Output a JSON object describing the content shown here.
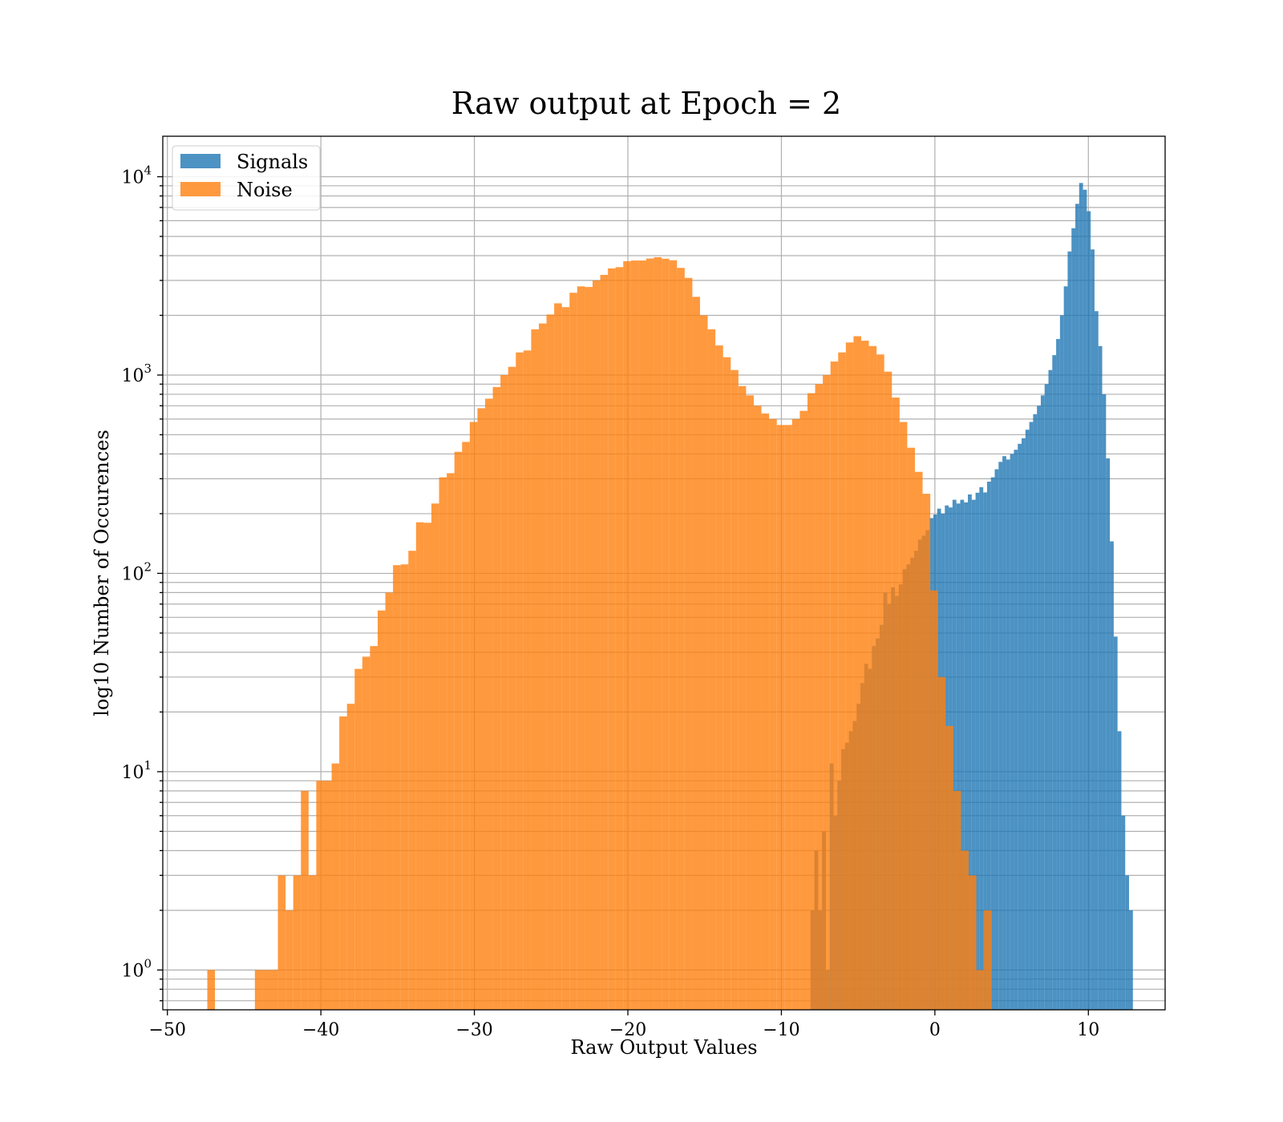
{
  "chart_data": {
    "type": "histogram",
    "title": "Raw output at Epoch = 2",
    "xlabel": "Raw Output Values",
    "ylabel": "log10 Number of Occurences",
    "xlim": [
      -50.3,
      15
    ],
    "ylim": [
      0.63,
      16000
    ],
    "yscale": "log",
    "grid": true,
    "legend_position": "top-left",
    "x_ticks": [
      {
        "value": -50,
        "label": "−50"
      },
      {
        "value": -40,
        "label": "−40"
      },
      {
        "value": -30,
        "label": "−30"
      },
      {
        "value": -20,
        "label": "−20"
      },
      {
        "value": -10,
        "label": "−10"
      },
      {
        "value": 0,
        "label": "0"
      },
      {
        "value": 10,
        "label": "10"
      }
    ],
    "y_ticks": [
      {
        "value": 1,
        "base": "10",
        "exp": "0"
      },
      {
        "value": 10,
        "base": "10",
        "exp": "1"
      },
      {
        "value": 100,
        "base": "10",
        "exp": "2"
      },
      {
        "value": 1000,
        "base": "10",
        "exp": "3"
      },
      {
        "value": 10000,
        "base": "10",
        "exp": "4"
      }
    ],
    "series": [
      {
        "name": "Signals",
        "color": "#1f77b4",
        "opacity": 0.8,
        "bins": [
          [
            -8.1,
            -7.85,
            2
          ],
          [
            -7.85,
            -7.6,
            4
          ],
          [
            -7.6,
            -7.35,
            2
          ],
          [
            -7.35,
            -7.1,
            5
          ],
          [
            -7.1,
            -6.85,
            1
          ],
          [
            -6.85,
            -6.6,
            11
          ],
          [
            -6.6,
            -6.35,
            6
          ],
          [
            -6.35,
            -6.1,
            9
          ],
          [
            -6.1,
            -5.85,
            13
          ],
          [
            -5.85,
            -5.6,
            14
          ],
          [
            -5.6,
            -5.35,
            16
          ],
          [
            -5.35,
            -5.1,
            18
          ],
          [
            -5.1,
            -4.85,
            22
          ],
          [
            -4.85,
            -4.6,
            28
          ],
          [
            -4.6,
            -4.35,
            35
          ],
          [
            -4.35,
            -4.1,
            33
          ],
          [
            -4.1,
            -3.85,
            43
          ],
          [
            -3.85,
            -3.6,
            47
          ],
          [
            -3.6,
            -3.35,
            55
          ],
          [
            -3.35,
            -3.1,
            80
          ],
          [
            -3.1,
            -2.85,
            70
          ],
          [
            -2.85,
            -2.6,
            85
          ],
          [
            -2.6,
            -2.35,
            77
          ],
          [
            -2.35,
            -2.1,
            88
          ],
          [
            -2.1,
            -1.85,
            105
          ],
          [
            -1.85,
            -1.6,
            111
          ],
          [
            -1.6,
            -1.35,
            120
          ],
          [
            -1.35,
            -1.1,
            130
          ],
          [
            -1.1,
            -0.85,
            148
          ],
          [
            -0.85,
            -0.6,
            155
          ],
          [
            -0.6,
            -0.35,
            165
          ],
          [
            -0.35,
            -0.1,
            190
          ],
          [
            -0.1,
            0.15,
            198
          ],
          [
            0.15,
            0.4,
            212
          ],
          [
            0.4,
            0.65,
            200
          ],
          [
            0.65,
            0.9,
            220
          ],
          [
            0.9,
            1.15,
            215
          ],
          [
            1.15,
            1.4,
            235
          ],
          [
            1.4,
            1.65,
            225
          ],
          [
            1.65,
            1.9,
            235
          ],
          [
            1.9,
            2.15,
            228
          ],
          [
            2.15,
            2.4,
            250
          ],
          [
            2.4,
            2.65,
            235
          ],
          [
            2.65,
            2.9,
            255
          ],
          [
            2.9,
            3.15,
            272
          ],
          [
            3.15,
            3.4,
            256
          ],
          [
            3.4,
            3.65,
            290
          ],
          [
            3.65,
            3.9,
            305
          ],
          [
            3.9,
            4.15,
            335
          ],
          [
            4.15,
            4.4,
            365
          ],
          [
            4.4,
            4.65,
            390
          ],
          [
            4.65,
            4.9,
            375
          ],
          [
            4.9,
            5.15,
            400
          ],
          [
            5.15,
            5.4,
            420
          ],
          [
            5.4,
            5.65,
            450
          ],
          [
            5.65,
            5.9,
            480
          ],
          [
            5.9,
            6.15,
            530
          ],
          [
            6.15,
            6.4,
            580
          ],
          [
            6.4,
            6.65,
            635
          ],
          [
            6.65,
            6.9,
            700
          ],
          [
            6.9,
            7.15,
            790
          ],
          [
            7.15,
            7.4,
            900
          ],
          [
            7.4,
            7.65,
            1060
          ],
          [
            7.65,
            7.9,
            1260
          ],
          [
            7.9,
            8.15,
            1520
          ],
          [
            8.15,
            8.4,
            2000
          ],
          [
            8.4,
            8.65,
            2800
          ],
          [
            8.65,
            8.9,
            4200
          ],
          [
            8.9,
            9.15,
            5500
          ],
          [
            9.15,
            9.4,
            7300
          ],
          [
            9.4,
            9.65,
            9300
          ],
          [
            9.65,
            9.9,
            8600
          ],
          [
            9.9,
            10.15,
            6700
          ],
          [
            10.15,
            10.4,
            4300
          ],
          [
            10.4,
            10.65,
            2100
          ],
          [
            10.65,
            10.9,
            1400
          ],
          [
            10.9,
            11.15,
            800
          ],
          [
            11.15,
            11.4,
            380
          ],
          [
            11.4,
            11.65,
            145
          ],
          [
            11.65,
            11.9,
            48
          ],
          [
            11.9,
            12.15,
            16
          ],
          [
            12.15,
            12.4,
            6
          ],
          [
            12.4,
            12.65,
            3
          ],
          [
            12.65,
            12.9,
            2
          ]
        ]
      },
      {
        "name": "Noise",
        "color": "#ff7f0e",
        "opacity": 0.8,
        "bins": [
          [
            -47.4,
            -46.9,
            1
          ],
          [
            -44.3,
            -43.8,
            1
          ],
          [
            -43.8,
            -43.3,
            1
          ],
          [
            -43.3,
            -42.8,
            1
          ],
          [
            -42.8,
            -42.3,
            3
          ],
          [
            -42.3,
            -41.8,
            2
          ],
          [
            -41.8,
            -41.3,
            3
          ],
          [
            -41.3,
            -40.8,
            8
          ],
          [
            -40.8,
            -40.3,
            3
          ],
          [
            -40.3,
            -39.8,
            9
          ],
          [
            -39.8,
            -39.3,
            9
          ],
          [
            -39.3,
            -38.8,
            11
          ],
          [
            -38.8,
            -38.3,
            19
          ],
          [
            -38.3,
            -37.8,
            22
          ],
          [
            -37.8,
            -37.3,
            33
          ],
          [
            -37.3,
            -36.8,
            38
          ],
          [
            -36.8,
            -36.3,
            43
          ],
          [
            -36.3,
            -35.8,
            65
          ],
          [
            -35.8,
            -35.3,
            80
          ],
          [
            -35.3,
            -34.8,
            110
          ],
          [
            -34.8,
            -34.3,
            111
          ],
          [
            -34.3,
            -33.8,
            130
          ],
          [
            -33.8,
            -33.3,
            181
          ],
          [
            -33.3,
            -32.8,
            180
          ],
          [
            -32.8,
            -32.3,
            225
          ],
          [
            -32.3,
            -31.8,
            305
          ],
          [
            -31.8,
            -31.3,
            320
          ],
          [
            -31.3,
            -30.8,
            410
          ],
          [
            -30.8,
            -30.3,
            460
          ],
          [
            -30.3,
            -29.8,
            580
          ],
          [
            -29.8,
            -29.3,
            680
          ],
          [
            -29.3,
            -28.8,
            760
          ],
          [
            -28.8,
            -28.3,
            870
          ],
          [
            -28.3,
            -27.8,
            1000
          ],
          [
            -27.8,
            -27.3,
            1100
          ],
          [
            -27.3,
            -26.8,
            1300
          ],
          [
            -26.8,
            -26.3,
            1330
          ],
          [
            -26.3,
            -25.8,
            1700
          ],
          [
            -25.8,
            -25.3,
            1820
          ],
          [
            -25.3,
            -24.8,
            2020
          ],
          [
            -24.8,
            -24.3,
            2300
          ],
          [
            -24.3,
            -23.8,
            2200
          ],
          [
            -23.8,
            -23.3,
            2600
          ],
          [
            -23.3,
            -22.8,
            2800
          ],
          [
            -22.8,
            -22.3,
            2780
          ],
          [
            -22.3,
            -21.8,
            3000
          ],
          [
            -21.8,
            -21.3,
            3200
          ],
          [
            -21.3,
            -20.8,
            3450
          ],
          [
            -20.8,
            -20.3,
            3500
          ],
          [
            -20.3,
            -19.8,
            3750
          ],
          [
            -19.8,
            -19.3,
            3780
          ],
          [
            -19.3,
            -18.8,
            3780
          ],
          [
            -18.8,
            -18.3,
            3870
          ],
          [
            -18.3,
            -17.8,
            3930
          ],
          [
            -17.8,
            -17.3,
            3860
          ],
          [
            -17.3,
            -16.8,
            3790
          ],
          [
            -16.8,
            -16.3,
            3470
          ],
          [
            -16.3,
            -15.8,
            3090
          ],
          [
            -15.8,
            -15.3,
            2480
          ],
          [
            -15.3,
            -14.8,
            2000
          ],
          [
            -14.8,
            -14.3,
            1700
          ],
          [
            -14.3,
            -13.8,
            1410
          ],
          [
            -13.8,
            -13.3,
            1230
          ],
          [
            -13.3,
            -12.8,
            1060
          ],
          [
            -12.8,
            -12.3,
            880
          ],
          [
            -12.3,
            -11.8,
            790
          ],
          [
            -11.8,
            -11.3,
            700
          ],
          [
            -11.3,
            -10.8,
            640
          ],
          [
            -10.8,
            -10.3,
            600
          ],
          [
            -10.3,
            -9.8,
            560
          ],
          [
            -9.8,
            -9.3,
            560
          ],
          [
            -9.3,
            -8.8,
            600
          ],
          [
            -8.8,
            -8.3,
            660
          ],
          [
            -8.3,
            -7.8,
            810
          ],
          [
            -7.8,
            -7.3,
            900
          ],
          [
            -7.3,
            -6.8,
            1000
          ],
          [
            -6.8,
            -6.3,
            1170
          ],
          [
            -6.3,
            -5.8,
            1300
          ],
          [
            -5.8,
            -5.3,
            1460
          ],
          [
            -5.3,
            -4.8,
            1570
          ],
          [
            -4.8,
            -4.3,
            1490
          ],
          [
            -4.3,
            -3.8,
            1400
          ],
          [
            -3.8,
            -3.3,
            1270
          ],
          [
            -3.3,
            -2.8,
            1040
          ],
          [
            -2.8,
            -2.3,
            770
          ],
          [
            -2.3,
            -1.8,
            580
          ],
          [
            -1.8,
            -1.3,
            430
          ],
          [
            -1.3,
            -0.8,
            325
          ],
          [
            -0.8,
            -0.3,
            252
          ],
          [
            -0.3,
            0.2,
            82
          ],
          [
            0.2,
            0.7,
            30
          ],
          [
            0.7,
            1.2,
            17
          ],
          [
            1.2,
            1.7,
            8
          ],
          [
            1.7,
            2.2,
            4
          ],
          [
            2.2,
            2.7,
            3
          ],
          [
            2.7,
            3.2,
            1
          ],
          [
            3.2,
            3.7,
            2
          ]
        ]
      }
    ]
  }
}
